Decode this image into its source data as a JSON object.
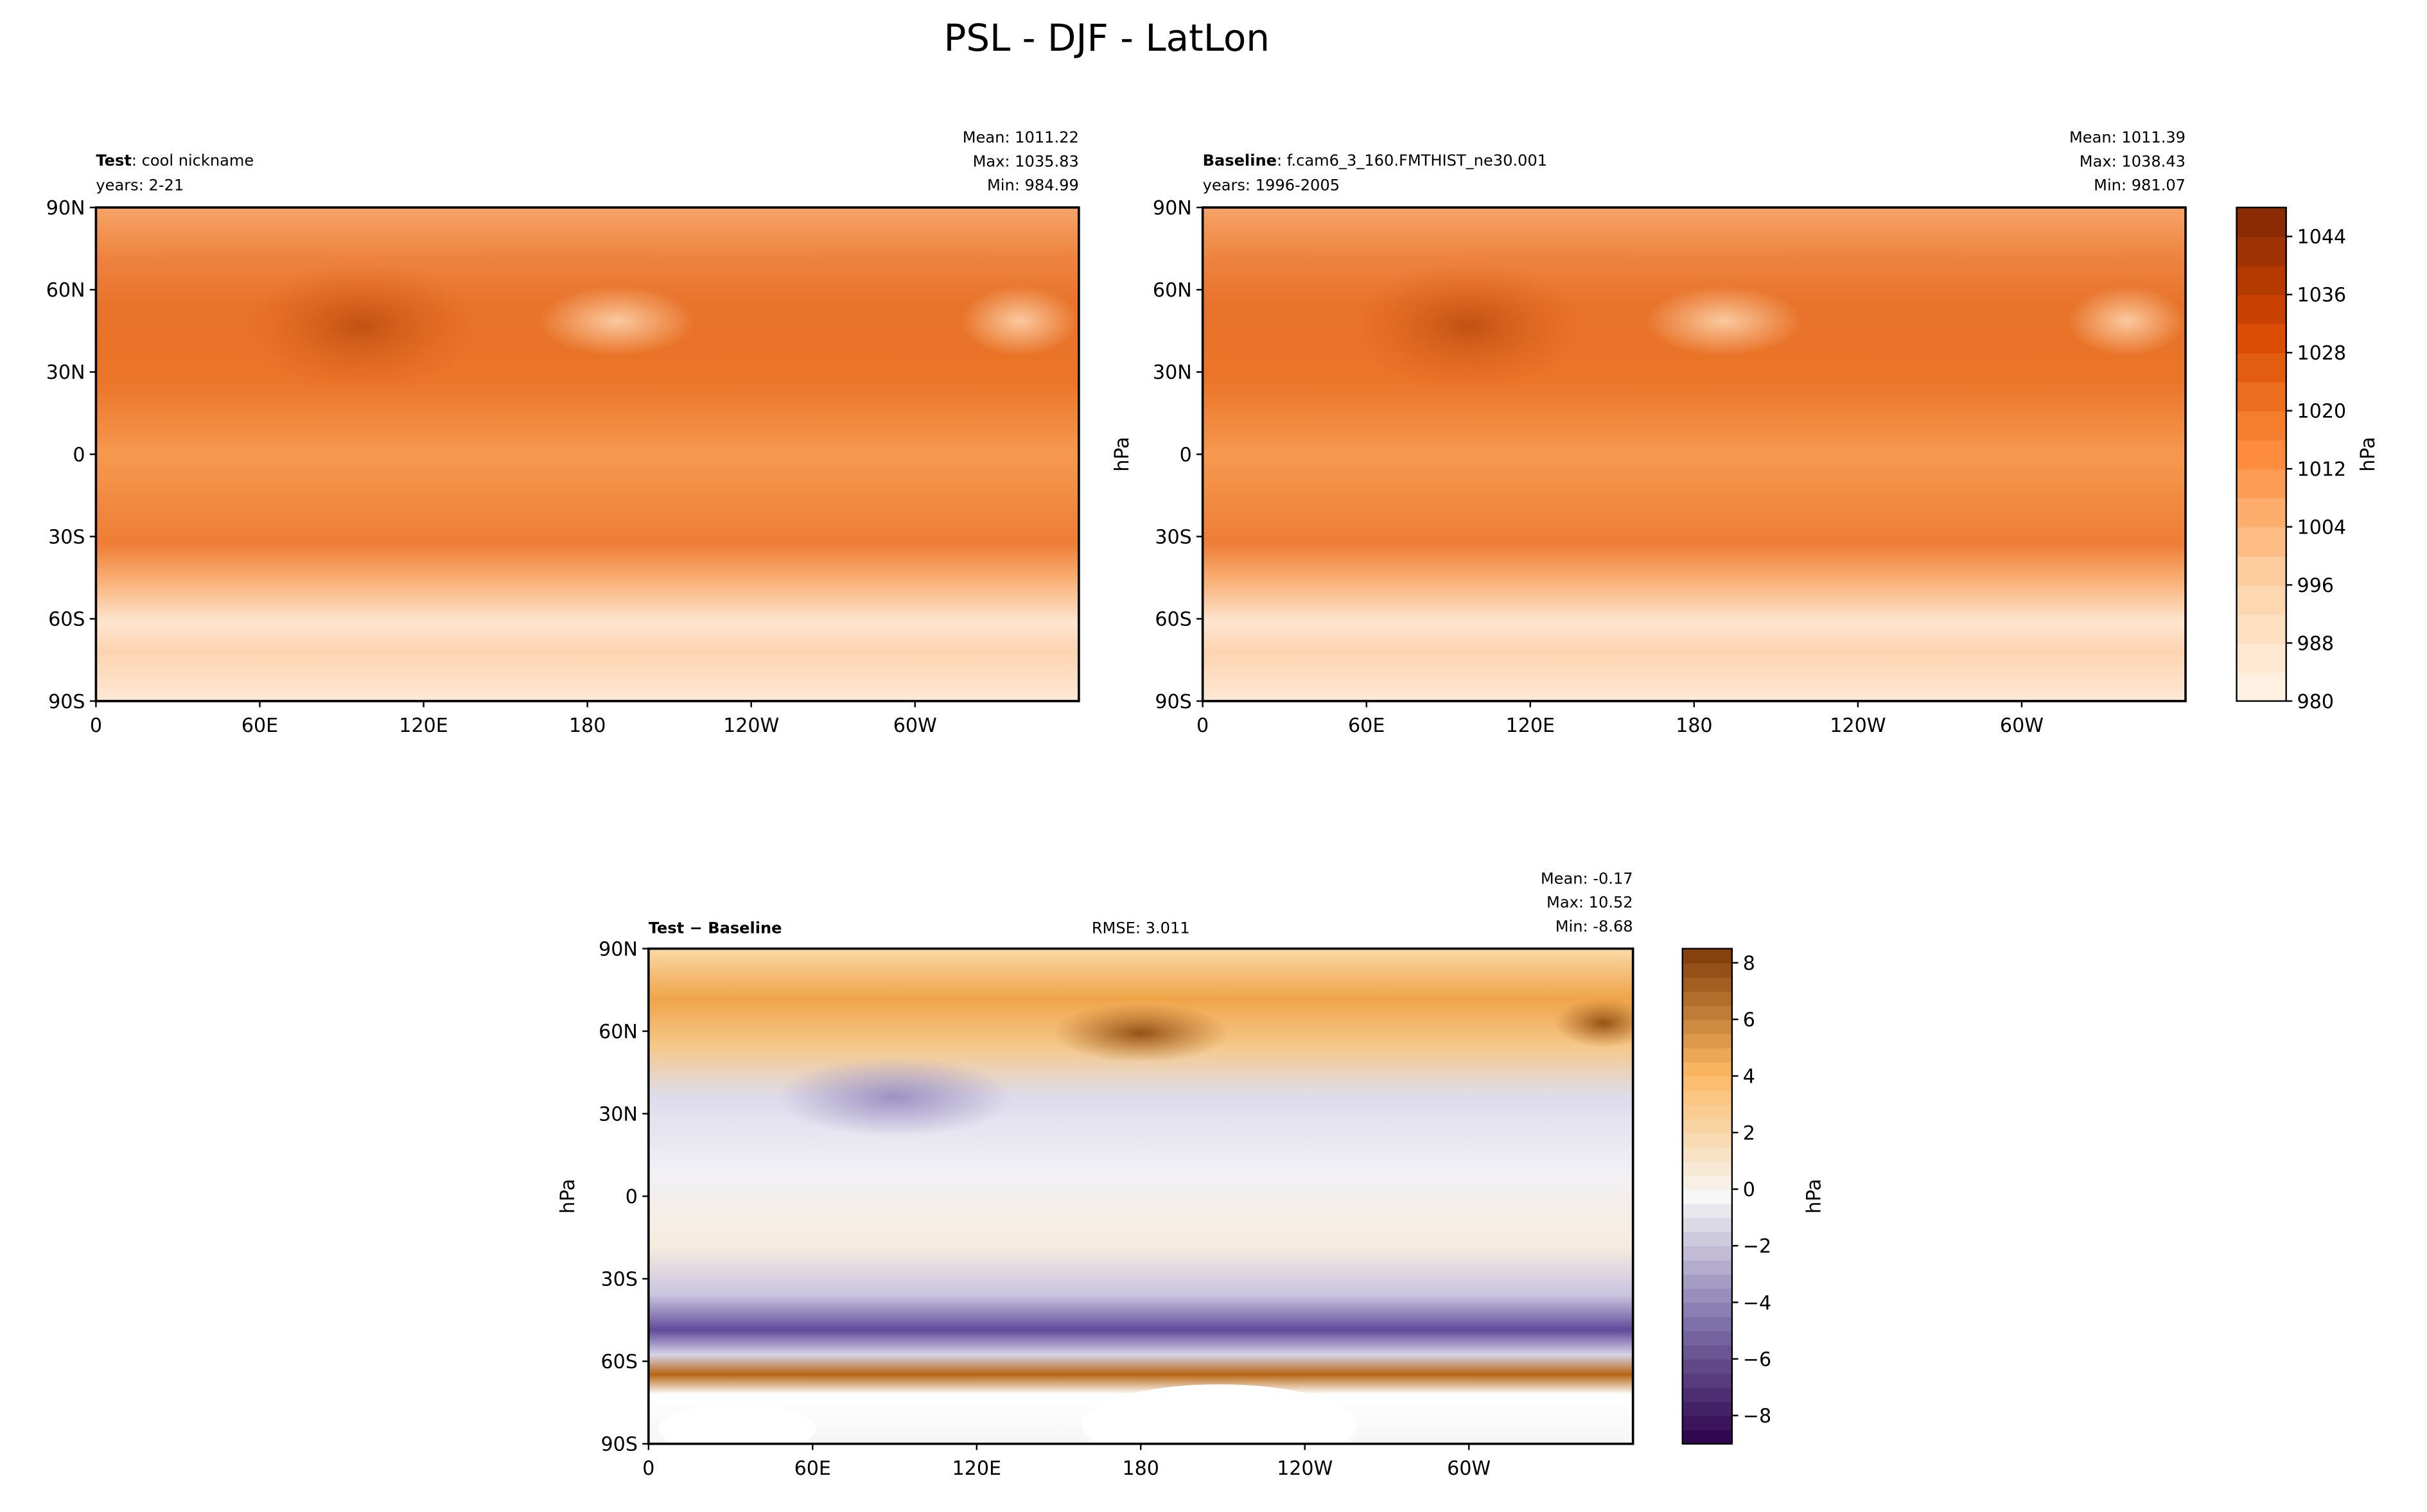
{
  "title": "PSL - DJF - LatLon",
  "chart_data": [
    {
      "type": "contour-map",
      "title_bold": "Test",
      "title": ": cool nickname",
      "subtitle": "years: 2-21",
      "stats": [
        "Mean: 1011.22",
        "Max: 1035.83",
        "Min: 984.99"
      ],
      "xlim": [
        0,
        360
      ],
      "ylim": [
        -90,
        90
      ],
      "xticks": [
        0,
        {
          "value": 60,
          "label": "60E"
        },
        {
          "value": 120,
          "label": "120E"
        },
        180,
        {
          "value": 240,
          "label": "120W"
        },
        {
          "value": 300,
          "label": "60W"
        }
      ],
      "yticks": [
        {
          "value": 90,
          "label": "90N"
        },
        {
          "value": 60,
          "label": "60N"
        },
        {
          "value": 30,
          "label": "30N"
        },
        0,
        {
          "value": -30,
          "label": "30S"
        },
        {
          "value": -60,
          "label": "60S"
        },
        {
          "value": -90,
          "label": "90S"
        }
      ]
    },
    {
      "type": "contour-map",
      "title_bold": "Baseline",
      "title": ": f.cam6_3_160.FMTHIST_ne30.001",
      "subtitle": "years: 1996-2005",
      "stats": [
        "Mean: 1011.39",
        "Max: 1038.43",
        "Min: 981.07"
      ],
      "ylabel": "hPa",
      "xlim": [
        0,
        360
      ],
      "ylim": [
        -90,
        90
      ],
      "xticks": [
        0,
        {
          "value": 60,
          "label": "60E"
        },
        {
          "value": 120,
          "label": "120E"
        },
        180,
        {
          "value": 240,
          "label": "120W"
        },
        {
          "value": 300,
          "label": "60W"
        }
      ],
      "yticks": [
        {
          "value": 90,
          "label": "90N"
        },
        {
          "value": 60,
          "label": "60N"
        },
        {
          "value": 30,
          "label": "30N"
        },
        0,
        {
          "value": -30,
          "label": "30S"
        },
        {
          "value": -60,
          "label": "60S"
        },
        {
          "value": -90,
          "label": "90S"
        }
      ],
      "colorbar": {
        "label": "hPa",
        "lim": [
          980,
          1048
        ],
        "ticks": [
          980,
          988,
          996,
          1004,
          1012,
          1020,
          1028,
          1036,
          1044
        ]
      }
    },
    {
      "type": "contour-map",
      "title_bold": "Test − Baseline",
      "rmse": "RMSE: 3.011",
      "stats": [
        "Mean: -0.17",
        "Max: 10.52",
        "Min: -8.68"
      ],
      "ylabel": "hPa",
      "xlim": [
        0,
        360
      ],
      "ylim": [
        -90,
        90
      ],
      "xticks": [
        0,
        {
          "value": 60,
          "label": "60E"
        },
        {
          "value": 120,
          "label": "120E"
        },
        180,
        {
          "value": 240,
          "label": "120W"
        },
        {
          "value": 300,
          "label": "60W"
        }
      ],
      "yticks": [
        {
          "value": 90,
          "label": "90N"
        },
        {
          "value": 60,
          "label": "60N"
        },
        {
          "value": 30,
          "label": "30N"
        },
        0,
        {
          "value": -30,
          "label": "30S"
        },
        {
          "value": -60,
          "label": "60S"
        },
        {
          "value": -90,
          "label": "90S"
        }
      ],
      "colorbar": {
        "label": "hPa",
        "lim": [
          -9,
          8.5
        ],
        "ticks": [
          {
            "value": -8,
            "label": "−8"
          },
          {
            "value": -6,
            "label": "−6"
          },
          {
            "value": -4,
            "label": "−4"
          },
          {
            "value": -2,
            "label": "−2"
          },
          0,
          2,
          4,
          6,
          8
        ]
      }
    }
  ]
}
